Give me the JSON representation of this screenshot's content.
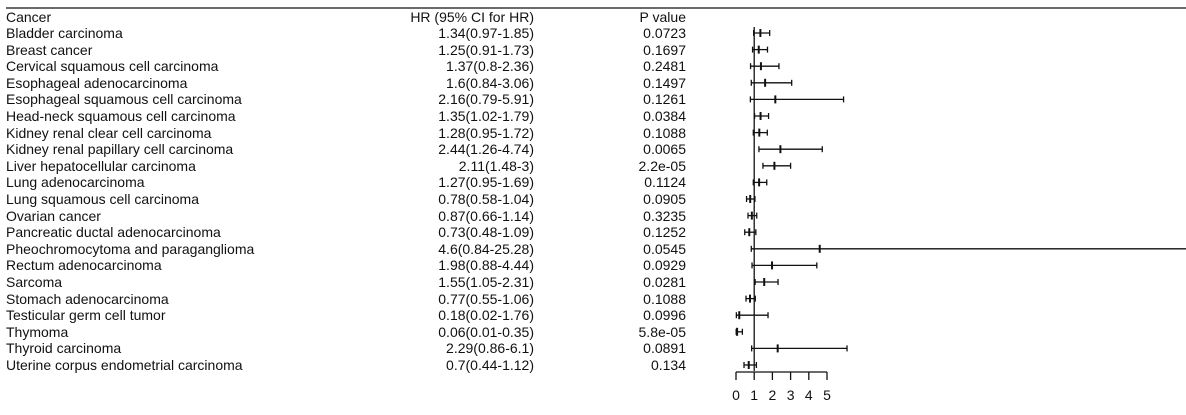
{
  "headers": {
    "cancer": "Cancer",
    "hr": "HR (95% CI for HR)",
    "p": "P value"
  },
  "rows": [
    {
      "cancer": "Bladder carcinoma",
      "hr_text": "1.34(0.97-1.85)",
      "p": "0.0723"
    },
    {
      "cancer": "Breast cancer",
      "hr_text": "1.25(0.91-1.73)",
      "p": "0.1697"
    },
    {
      "cancer": "Cervical squamous cell carcinoma",
      "hr_text": "1.37(0.8-2.36)",
      "p": "0.2481"
    },
    {
      "cancer": "Esophageal adenocarcinoma",
      "hr_text": "1.6(0.84-3.06)",
      "p": "0.1497"
    },
    {
      "cancer": "Esophageal squamous cell carcinoma",
      "hr_text": "2.16(0.79-5.91)",
      "p": "0.1261"
    },
    {
      "cancer": "Head-neck squamous cell carcinoma",
      "hr_text": "1.35(1.02-1.79)",
      "p": "0.0384"
    },
    {
      "cancer": "Kidney renal clear cell carcinoma",
      "hr_text": "1.28(0.95-1.72)",
      "p": "0.1088"
    },
    {
      "cancer": "Kidney renal papillary cell carcinoma",
      "hr_text": "2.44(1.26-4.74)",
      "p": "0.0065"
    },
    {
      "cancer": "Liver hepatocellular carcinoma",
      "hr_text": "2.11(1.48-3)",
      "p": "2.2e-05"
    },
    {
      "cancer": "Lung adenocarcinoma",
      "hr_text": "1.27(0.95-1.69)",
      "p": "0.1124"
    },
    {
      "cancer": "Lung squamous cell carcinoma",
      "hr_text": "0.78(0.58-1.04)",
      "p": "0.0905"
    },
    {
      "cancer": "Ovarian cancer",
      "hr_text": "0.87(0.66-1.14)",
      "p": "0.3235"
    },
    {
      "cancer": "Pancreatic ductal adenocarcinoma",
      "hr_text": "0.73(0.48-1.09)",
      "p": "0.1252"
    },
    {
      "cancer": "Pheochromocytoma and paraganglioma",
      "hr_text": "4.6(0.84-25.28)",
      "p": "0.0545"
    },
    {
      "cancer": "Rectum adenocarcinoma",
      "hr_text": "1.98(0.88-4.44)",
      "p": "0.0929"
    },
    {
      "cancer": "Sarcoma",
      "hr_text": "1.55(1.05-2.31)",
      "p": "0.0281"
    },
    {
      "cancer": "Stomach adenocarcinoma",
      "hr_text": "0.77(0.55-1.06)",
      "p": "0.1088"
    },
    {
      "cancer": "Testicular germ cell tumor",
      "hr_text": "0.18(0.02-1.76)",
      "p": "0.0996"
    },
    {
      "cancer": "Thymoma",
      "hr_text": "0.06(0.01-0.35)",
      "p": "5.8e-05"
    },
    {
      "cancer": "Thyroid carcinoma",
      "hr_text": "2.29(0.86-6.1)",
      "p": "0.0891"
    },
    {
      "cancer": "Uterine corpus endometrial carcinoma",
      "hr_text": "0.7(0.44-1.12)",
      "p": "0.134"
    }
  ],
  "chart_data": {
    "type": "forest",
    "series": [
      {
        "values": [
          {
            "hr": 1.34,
            "lo": 0.97,
            "hi": 1.85
          },
          {
            "hr": 1.25,
            "lo": 0.91,
            "hi": 1.73
          },
          {
            "hr": 1.37,
            "lo": 0.8,
            "hi": 2.36
          },
          {
            "hr": 1.6,
            "lo": 0.84,
            "hi": 3.06
          },
          {
            "hr": 2.16,
            "lo": 0.79,
            "hi": 5.91
          },
          {
            "hr": 1.35,
            "lo": 1.02,
            "hi": 1.79
          },
          {
            "hr": 1.28,
            "lo": 0.95,
            "hi": 1.72
          },
          {
            "hr": 2.44,
            "lo": 1.26,
            "hi": 4.74
          },
          {
            "hr": 2.11,
            "lo": 1.48,
            "hi": 3.0
          },
          {
            "hr": 1.27,
            "lo": 0.95,
            "hi": 1.69
          },
          {
            "hr": 0.78,
            "lo": 0.58,
            "hi": 1.04
          },
          {
            "hr": 0.87,
            "lo": 0.66,
            "hi": 1.14
          },
          {
            "hr": 0.73,
            "lo": 0.48,
            "hi": 1.09
          },
          {
            "hr": 4.6,
            "lo": 0.84,
            "hi": 25.28
          },
          {
            "hr": 1.98,
            "lo": 0.88,
            "hi": 4.44
          },
          {
            "hr": 1.55,
            "lo": 1.05,
            "hi": 2.31
          },
          {
            "hr": 0.77,
            "lo": 0.55,
            "hi": 1.06
          },
          {
            "hr": 0.18,
            "lo": 0.02,
            "hi": 1.76
          },
          {
            "hr": 0.06,
            "lo": 0.01,
            "hi": 0.35
          },
          {
            "hr": 2.29,
            "lo": 0.86,
            "hi": 6.1
          },
          {
            "hr": 0.7,
            "lo": 0.44,
            "hi": 1.12
          }
        ]
      }
    ],
    "x_ticks": [
      "0",
      "1",
      "2",
      "3",
      "4",
      "5"
    ],
    "xlim": [
      0,
      5
    ],
    "reference_line": 1,
    "grid": false,
    "colors": {
      "line": "#111111"
    }
  }
}
